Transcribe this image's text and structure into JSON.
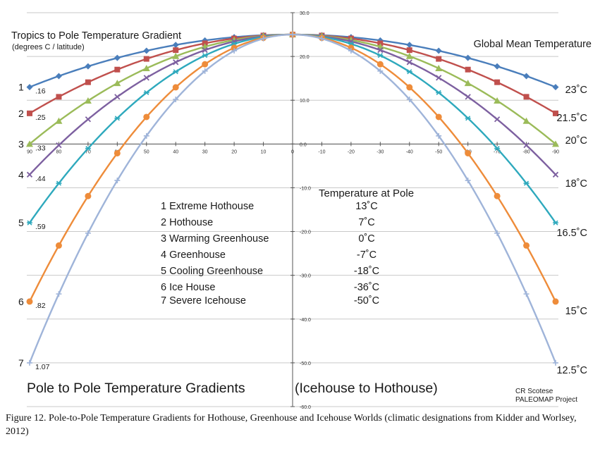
{
  "chart_data": {
    "type": "line",
    "title": "Pole to Pole Temperature Gradients",
    "title_suffix": "(Icehouse to Hothouse)",
    "left_heading": "Tropics to Pole Temperature Gradient",
    "left_subheading": "(degrees C / latitude)",
    "right_heading": "Global Mean Temperature",
    "pole_heading": "Temperature at Pole",
    "credit_line1": "CR Scotese",
    "credit_line2": "PALEOMAP Project",
    "x_ticks": [
      90,
      80,
      70,
      60,
      50,
      40,
      30,
      20,
      10,
      0,
      -10,
      -20,
      -30,
      -40,
      -50,
      -60,
      -70,
      -80,
      -90
    ],
    "y_ticks": [
      30,
      20,
      10,
      0,
      -10,
      -20,
      -30,
      -40,
      -50,
      -60
    ],
    "y_tick_labels": [
      "30.0",
      "20.0",
      "10.0",
      "0.0",
      "-10.0",
      "-20.0",
      "-30.0",
      "-40.0",
      "-50.0",
      "-60.0"
    ],
    "xlim": [
      90,
      -90
    ],
    "ylim": [
      -60,
      30
    ],
    "grid": true,
    "equator_temperature": 25,
    "series": [
      {
        "number": "1",
        "name": "Extreme Hothouse",
        "gradient": ".16",
        "gradient_value": 0.16,
        "pole_temp": "13˚C",
        "pole_value": 13,
        "global_mean": "23˚C",
        "color": "#4a7ebb",
        "marker": "diamond"
      },
      {
        "number": "2",
        "name": "Hothouse",
        "gradient": ".25",
        "gradient_value": 0.25,
        "pole_temp": "7˚C",
        "pole_value": 7,
        "global_mean": "21.5˚C",
        "color": "#c0504d",
        "marker": "square"
      },
      {
        "number": "3",
        "name": "Warming Greenhouse",
        "gradient": ".33",
        "gradient_value": 0.33,
        "pole_temp": "0˚C",
        "pole_value": 0,
        "global_mean": "20˚C",
        "color": "#9bbb59",
        "marker": "triangle"
      },
      {
        "number": "4",
        "name": "Greenhouse",
        "gradient": ".44",
        "gradient_value": 0.44,
        "pole_temp": "-7˚C",
        "pole_value": -7,
        "global_mean": "18˚C",
        "color": "#7d60a0",
        "marker": "x"
      },
      {
        "number": "5",
        "name": "Cooling Greenhouse",
        "gradient": ".59",
        "gradient_value": 0.59,
        "pole_temp": "-18˚C",
        "pole_value": -18,
        "global_mean": "16.5˚C",
        "color": "#2ea9bd",
        "marker": "star"
      },
      {
        "number": "6",
        "name": "Ice House",
        "gradient": ".82",
        "gradient_value": 0.82,
        "pole_temp": "-36˚C",
        "pole_value": -36,
        "global_mean": "15˚C",
        "color": "#ee8c3a",
        "marker": "circle"
      },
      {
        "number": "7",
        "name": "Severe Icehouse",
        "gradient": "1.07",
        "gradient_value": 1.07,
        "pole_temp": "-50˚C",
        "pole_value": -50,
        "global_mean": "12.5˚C",
        "color": "#9fb4d9",
        "marker": "plus"
      }
    ]
  },
  "caption": "Figure 12.   Pole-to-Pole Temperature Gradients for Hothouse, Greenhouse and Icehouse Worlds  (climatic designations from Kidder and Worlsey, 2012)"
}
